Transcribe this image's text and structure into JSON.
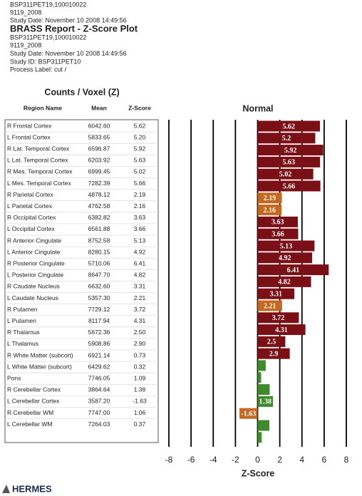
{
  "header": {
    "top_lines": [
      "BSP311PET19,100010022",
      "9119_2008",
      "Study Date: November 10 2008 14:49:56"
    ],
    "title": "BRASS Report - Z-Score Plot",
    "info_lines": [
      "BSP311PET19,100010022",
      "9119_2008",
      "Study Date: November 10 2008 14:49:56",
      "Study ID: BSP311PET10",
      "Process Label: cut /"
    ]
  },
  "table": {
    "title": "Counts / Voxel (Z)",
    "columns": [
      "Region Name",
      "Mean",
      "Z-Score"
    ],
    "rows": [
      [
        "R Frontal Cortex",
        "6042.60",
        "5.62"
      ],
      [
        "L Frontal Cortex",
        "5833.65",
        "5.20"
      ],
      [
        "R Lat. Temporal Cortex",
        "6596.87",
        "5.92"
      ],
      [
        "L Lat. Temporal Cortex",
        "6203.92",
        "5.63"
      ],
      [
        "R Mes. Temporal Cortex",
        "6999.45",
        "5.02"
      ],
      [
        "L Mes. Temporal Cortex",
        "7282.39",
        "5.66"
      ],
      [
        "R Parietal Cortex",
        "4878.12",
        "2.19"
      ],
      [
        "L Parietal Cortex",
        "4762.58",
        "2.16"
      ],
      [
        "R Occipital Cortex",
        "6382.82",
        "3.63"
      ],
      [
        "L Occipital Cortex",
        "6561.88",
        "3.66"
      ],
      [
        "R Anterior Cingulate",
        "8752.58",
        "5.13"
      ],
      [
        "L Anterior Cingulate",
        "8280.15",
        "4.92"
      ],
      [
        "R Posterior Cingulate",
        "5710.06",
        "6.41"
      ],
      [
        "L Posterior Cingulate",
        "8647.70",
        "4.82"
      ],
      [
        "R Caudate Nucleus",
        "6632.60",
        "3.31"
      ],
      [
        "L Caudate Nucleus",
        "5357.30",
        "2.21"
      ],
      [
        "R Putamen",
        "7729.12",
        "3.72"
      ],
      [
        "L Putamen",
        "8117.94",
        "4.31"
      ],
      [
        "R Thalamus",
        "5672.36",
        "2.50"
      ],
      [
        "L Thalamus",
        "5908.86",
        "2.90"
      ],
      [
        "R White Matter (subcort)",
        "6921.14",
        "0.73"
      ],
      [
        "L White Matter (subcort)",
        "6429.62",
        "0.32"
      ],
      [
        "Pons",
        "7746.05",
        "1.09"
      ],
      [
        "R Cerebellar Cortex",
        "3864.64",
        "1.38"
      ],
      [
        "L Cerebellar Cortex",
        "3587.20",
        "-1.63"
      ],
      [
        "R Cerebellar WM",
        "7747.00",
        "1.06"
      ],
      [
        "L Cerebellar WM",
        "7264.03",
        "0.37"
      ]
    ]
  },
  "chart_data": {
    "type": "bar",
    "orientation": "horizontal",
    "title": "Normal",
    "xlabel": "Z-Score",
    "values": [
      5.62,
      5.2,
      5.92,
      5.63,
      5.02,
      5.66,
      2.19,
      2.16,
      3.63,
      3.66,
      5.13,
      4.92,
      6.41,
      4.82,
      3.31,
      2.21,
      3.72,
      4.31,
      2.5,
      2.9,
      0.73,
      0.32,
      1.09,
      1.38,
      -1.63,
      1.06,
      0.37
    ],
    "colors": [
      "#7a1016",
      "#7a1016",
      "#7a1016",
      "#7a1016",
      "#7a1016",
      "#7a1016",
      "#c4681f",
      "#c4681f",
      "#7a1016",
      "#7a1016",
      "#7a1016",
      "#7a1016",
      "#7a1016",
      "#7a1016",
      "#7a1016",
      "#c4681f",
      "#7a1016",
      "#7a1016",
      "#7a1016",
      "#7a1016",
      "#3f8a2c",
      "#3f8a2c",
      "#3f8a2c",
      "#3f8a2c",
      "#c4681f",
      "#3f8a2c",
      "#3f8a2c"
    ],
    "xlim": [
      -8,
      8
    ],
    "xticks": [
      -8,
      -6,
      -4,
      -2,
      0,
      2,
      4,
      6,
      8
    ],
    "grid": true
  },
  "footer": {
    "logo": "HERMES"
  }
}
